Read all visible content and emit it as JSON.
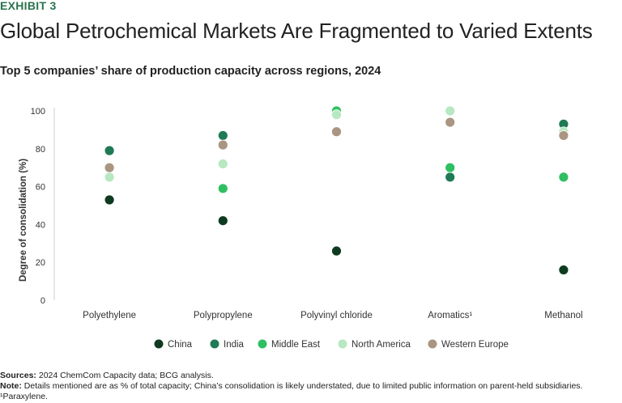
{
  "header": {
    "exhibit": "EXHIBIT 3",
    "title": "Global Petrochemical Markets Are Fragmented to Varied Extents",
    "subtitle": "Top 5 companies’ share of production capacity across regions, 2024"
  },
  "chart_data": {
    "type": "scatter",
    "title": "Top 5 companies’ share of production capacity across regions, 2024",
    "xlabel": "",
    "ylabel": "Degree of consolidation (%)",
    "ylim": [
      0,
      100
    ],
    "yticks": [
      0,
      20,
      40,
      60,
      80,
      100
    ],
    "grid": false,
    "legend_position": "bottom",
    "categories": [
      "Polyethylene",
      "Polypropylene",
      "Polyvinyl chloride",
      "Aromatics¹",
      "Methanol"
    ],
    "series": [
      {
        "name": "China",
        "color": "#0e3b1f",
        "values": [
          53,
          42,
          26,
          65,
          16
        ]
      },
      {
        "name": "India",
        "color": "#1f7a55",
        "values": [
          79,
          87,
          99,
          65,
          93
        ]
      },
      {
        "name": "Middle East",
        "color": "#2fbf62",
        "values": [
          null,
          59,
          100,
          70,
          65
        ]
      },
      {
        "name": "North America",
        "color": "#b7e8c2",
        "values": [
          65,
          72,
          98,
          100,
          89
        ]
      },
      {
        "name": "Western Europe",
        "color": "#a99581",
        "values": [
          70,
          82,
          89,
          94,
          87
        ]
      }
    ]
  },
  "footer": {
    "sources_label": "Sources:",
    "sources_text": "2024 ChemCom Capacity data; BCG analysis.",
    "note_label": "Note:",
    "note_text": "Details mentioned are as % of total capacity; China’s consolidation is likely understated, due to limited public information on parent-held subsidiaries.",
    "footnote": "¹Paraxylene."
  }
}
